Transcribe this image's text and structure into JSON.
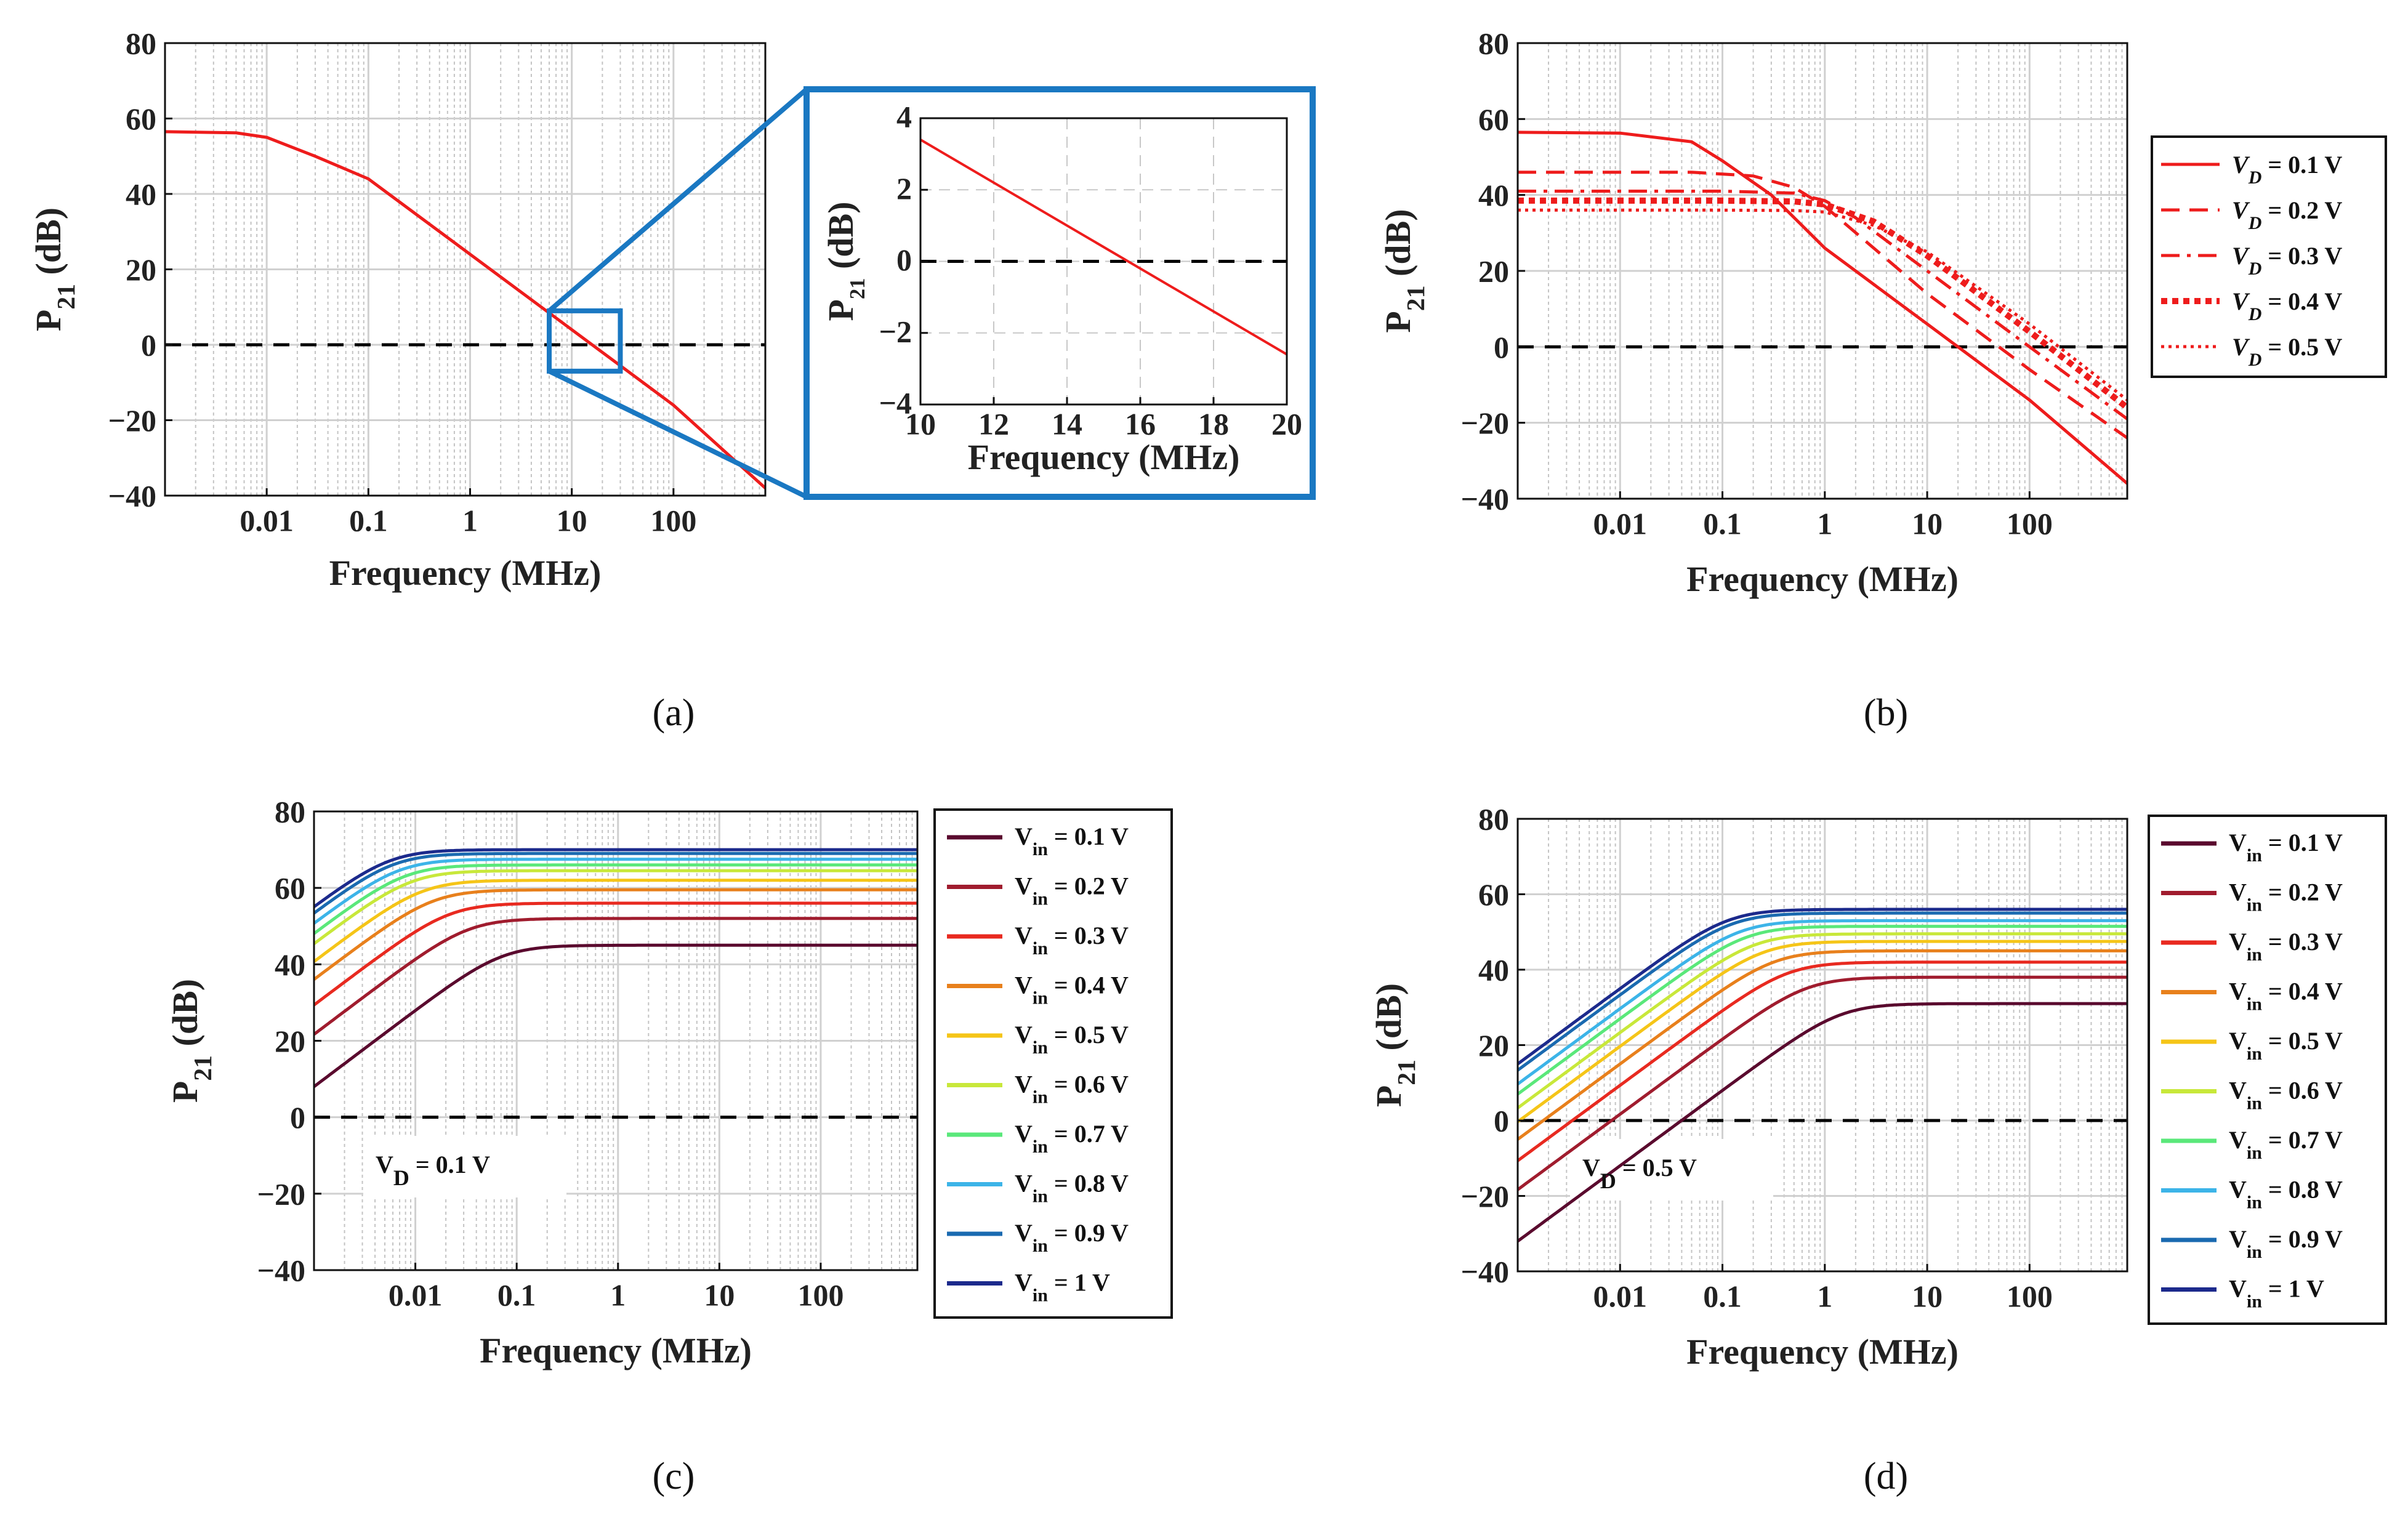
{
  "captions": {
    "a": "(a)",
    "b": "(b)",
    "c": "(c)",
    "d": "(d)"
  },
  "chart_data": [
    {
      "id": "a",
      "type": "line",
      "xlabel": "Frequency (MHz)",
      "ylabel": "P21 (dB)",
      "xscale": "log",
      "xlim": [
        0.001,
        800
      ],
      "ylim": [
        -40,
        80
      ],
      "xticks": [
        "0.01",
        "0.1",
        "1",
        "10",
        "100"
      ],
      "yticks": [
        "80",
        "60",
        "40",
        "20",
        "0",
        "−20",
        "−40"
      ],
      "grid": true,
      "reference_line": {
        "y": 0,
        "style": "dashed",
        "color": "#000000"
      },
      "series": [
        {
          "color": "#ee1c1c",
          "style": "solid",
          "x": [
            0.001,
            0.005,
            0.01,
            0.03,
            0.1,
            1,
            10,
            100,
            800
          ],
          "y": [
            56.5,
            56.2,
            55.0,
            50.0,
            44.0,
            24.0,
            4.0,
            -16.0,
            -38.0
          ]
        }
      ],
      "zoom_box": {
        "xlim": [
          10,
          20
        ],
        "ylim": [
          -4,
          4
        ]
      }
    },
    {
      "id": "a_inset",
      "type": "line",
      "xlabel": "Frequency (MHz)",
      "ylabel": "P21 (dB)",
      "xlim": [
        10,
        20
      ],
      "ylim": [
        -4,
        4
      ],
      "xticks": [
        "10",
        "12",
        "14",
        "16",
        "18",
        "20"
      ],
      "yticks": [
        "4",
        "2",
        "0",
        "−2",
        "−4"
      ],
      "grid": true,
      "reference_line": {
        "y": 0,
        "style": "dashed",
        "color": "#000000"
      },
      "series": [
        {
          "color": "#ee1c1c",
          "style": "solid",
          "x": [
            10,
            20
          ],
          "y": [
            3.4,
            -2.6
          ]
        }
      ]
    },
    {
      "id": "b",
      "type": "line",
      "xlabel": "Frequency (MHz)",
      "ylabel": "P21 (dB)",
      "xscale": "log",
      "xlim": [
        0.001,
        900
      ],
      "ylim": [
        -40,
        80
      ],
      "xticks": [
        "0.01",
        "0.1",
        "1",
        "10",
        "100"
      ],
      "yticks": [
        "80",
        "60",
        "40",
        "20",
        "0",
        "−20",
        "−40"
      ],
      "grid": true,
      "legend": "right",
      "reference_line": {
        "y": 0,
        "style": "dashed",
        "color": "#000000"
      },
      "series": [
        {
          "name": "V_D = 0.1 V",
          "color": "#ee1c1c",
          "style": "solid",
          "x": [
            0.001,
            0.01,
            0.05,
            0.1,
            0.3,
            1,
            10,
            100,
            900
          ],
          "y": [
            56.5,
            56.3,
            54.0,
            49.0,
            40.0,
            26.0,
            6.0,
            -14.0,
            -36.0
          ]
        },
        {
          "name": "V_D = 0.2 V",
          "color": "#ee1c1c",
          "style": "dash",
          "x": [
            0.001,
            0.05,
            0.2,
            0.5,
            1,
            10,
            100,
            900
          ],
          "y": [
            46.0,
            46.0,
            45.0,
            42.0,
            37.0,
            14.0,
            -6.0,
            -24.0
          ]
        },
        {
          "name": "V_D = 0.3 V",
          "color": "#ee1c1c",
          "style": "dashdot",
          "x": [
            0.001,
            0.1,
            0.5,
            1,
            2,
            10,
            100,
            900
          ],
          "y": [
            41.0,
            41.0,
            40.5,
            38.5,
            34.0,
            20.0,
            0.0,
            -19.0
          ]
        },
        {
          "name": "V_D = 0.4 V",
          "color": "#ee1c1c",
          "style": "thickdot",
          "x": [
            0.001,
            0.1,
            0.5,
            1,
            3,
            10,
            100,
            900
          ],
          "y": [
            38.5,
            38.5,
            38.3,
            37.5,
            33.0,
            24.0,
            4.0,
            -16.0
          ]
        },
        {
          "name": "V_D = 0.5 V",
          "color": "#ee1c1c",
          "style": "dot",
          "x": [
            0.001,
            0.1,
            0.5,
            1,
            3,
            10,
            100,
            900
          ],
          "y": [
            36.0,
            36.0,
            35.9,
            35.5,
            32.0,
            25.0,
            6.0,
            -14.0
          ]
        }
      ]
    },
    {
      "id": "c",
      "type": "line",
      "xlabel": "Frequency (MHz)",
      "ylabel": "P21 (dB)",
      "xscale": "log",
      "xlim": [
        0.001,
        900
      ],
      "ylim": [
        -40,
        80
      ],
      "xticks": [
        "0.01",
        "0.1",
        "1",
        "10",
        "100"
      ],
      "yticks": [
        "80",
        "60",
        "40",
        "20",
        "0",
        "−20",
        "−40"
      ],
      "grid": true,
      "legend": "right",
      "annotation": "V_D = 0.1 V",
      "reference_line": {
        "y": 0,
        "style": "dashed",
        "color": "#000000"
      },
      "asymptote": {
        "slope_db_per_decade": -20,
        "y_at_1MHz": 22.0,
        "spread": 2.8
      },
      "series": [
        {
          "name": "V_in = 0.1 V",
          "color": "#5a0a2e",
          "dc": 45.0
        },
        {
          "name": "V_in = 0.2 V",
          "color": "#a01c2e",
          "dc": 52.0
        },
        {
          "name": "V_in = 0.3 V",
          "color": "#e82a20",
          "dc": 56.0
        },
        {
          "name": "V_in = 0.4 V",
          "color": "#e8801c",
          "dc": 59.5
        },
        {
          "name": "V_in = 0.5 V",
          "color": "#f5c518",
          "dc": 62.0
        },
        {
          "name": "V_in = 0.6 V",
          "color": "#c8e83a",
          "dc": 64.5
        },
        {
          "name": "V_in = 0.7 V",
          "color": "#5ae87a",
          "dc": 66.0
        },
        {
          "name": "V_in = 0.8 V",
          "color": "#3cb4e8",
          "dc": 67.5
        },
        {
          "name": "V_in = 0.9 V",
          "color": "#1a6ab0",
          "dc": 69.0
        },
        {
          "name": "V_in = 1 V",
          "color": "#1c2a8c",
          "dc": 70.0
        }
      ]
    },
    {
      "id": "d",
      "type": "line",
      "xlabel": "Frequency (MHz)",
      "ylabel": "P21 (dB)",
      "xscale": "log",
      "xlim": [
        0.001,
        900
      ],
      "ylim": [
        -40,
        80
      ],
      "xticks": [
        "0.01",
        "0.1",
        "1",
        "10",
        "100"
      ],
      "yticks": [
        "80",
        "60",
        "40",
        "20",
        "0",
        "−20",
        "−40"
      ],
      "grid": true,
      "legend": "right",
      "annotation": "V_D = 0.5 V",
      "reference_line": {
        "y": 0,
        "style": "dashed",
        "color": "#000000"
      },
      "asymptote": {
        "slope_db_per_decade": -20,
        "y_at_1MHz": 34.0,
        "spread": 3.0
      },
      "series": [
        {
          "name": "V_in = 0.1 V",
          "color": "#5a0a2e",
          "dc": 31.0
        },
        {
          "name": "V_in = 0.2 V",
          "color": "#a01c2e",
          "dc": 38.0
        },
        {
          "name": "V_in = 0.3 V",
          "color": "#e82a20",
          "dc": 42.0
        },
        {
          "name": "V_in = 0.4 V",
          "color": "#e8801c",
          "dc": 45.0
        },
        {
          "name": "V_in = 0.5 V",
          "color": "#f5c518",
          "dc": 47.5
        },
        {
          "name": "V_in = 0.6 V",
          "color": "#c8e83a",
          "dc": 49.5
        },
        {
          "name": "V_in = 0.7 V",
          "color": "#5ae87a",
          "dc": 51.5
        },
        {
          "name": "V_in = 0.8 V",
          "color": "#3cb4e8",
          "dc": 53.0
        },
        {
          "name": "V_in = 0.9 V",
          "color": "#1a6ab0",
          "dc": 55.0
        },
        {
          "name": "V_in = 1 V",
          "color": "#1c2a8c",
          "dc": 56.0
        }
      ]
    }
  ]
}
